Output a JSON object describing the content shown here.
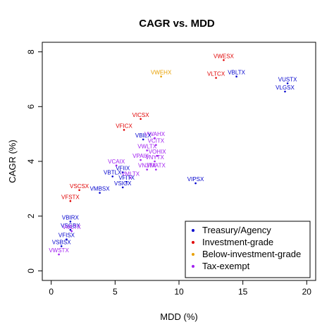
{
  "chart_data": {
    "type": "scatter",
    "title": "CAGR vs. MDD",
    "xlabel": "MDD (%)",
    "ylabel": "CAGR (%)",
    "xlim": [
      -0.7,
      20.7
    ],
    "ylim": [
      -0.35,
      8.35
    ],
    "xticks": [
      0,
      5,
      10,
      15,
      20
    ],
    "yticks": [
      0,
      2,
      4,
      6,
      8
    ],
    "grid": false,
    "legend_position": "bottom-right",
    "legend": [
      {
        "label": "Treasury/Agency",
        "color": "#0000cd"
      },
      {
        "label": "Investment-grade",
        "color": "#e00000"
      },
      {
        "label": "Below-investment-grade",
        "color": "#e8a000"
      },
      {
        "label": "Tax-exempt",
        "color": "#a020f0"
      }
    ],
    "points": [
      {
        "label": "VWESX",
        "x": 13.5,
        "y": 7.7,
        "group": "Investment-grade"
      },
      {
        "label": "VBLTX",
        "x": 14.5,
        "y": 7.1,
        "group": "Treasury/Agency"
      },
      {
        "label": "VLTCX",
        "x": 12.9,
        "y": 7.05,
        "group": "Investment-grade"
      },
      {
        "label": "VWEHX",
        "x": 8.6,
        "y": 7.1,
        "group": "Below-investment-grade"
      },
      {
        "label": "VUSTX",
        "x": 18.5,
        "y": 6.85,
        "group": "Treasury/Agency"
      },
      {
        "label": "VLGSX",
        "x": 18.3,
        "y": 6.55,
        "group": "Treasury/Agency"
      },
      {
        "label": "VICSX",
        "x": 7.0,
        "y": 5.55,
        "group": "Investment-grade"
      },
      {
        "label": "VFICX",
        "x": 5.7,
        "y": 5.15,
        "group": "Investment-grade"
      },
      {
        "label": "VWAHX",
        "x": 8.1,
        "y": 4.85,
        "group": "Tax-exempt"
      },
      {
        "label": "VBILX",
        "x": 7.2,
        "y": 4.8,
        "group": "Treasury/Agency"
      },
      {
        "label": "VCITX",
        "x": 8.2,
        "y": 4.6,
        "group": "Tax-exempt"
      },
      {
        "label": "VWLTX",
        "x": 7.5,
        "y": 4.4,
        "group": "Tax-exempt"
      },
      {
        "label": "VOHIX",
        "x": 8.3,
        "y": 4.2,
        "group": "Tax-exempt"
      },
      {
        "label": "VPAIX",
        "x": 7.0,
        "y": 4.05,
        "group": "Tax-exempt"
      },
      {
        "label": "VNYTX",
        "x": 8.1,
        "y": 4.0,
        "group": "Tax-exempt"
      },
      {
        "label": "VCAIX",
        "x": 5.1,
        "y": 3.85,
        "group": "Tax-exempt"
      },
      {
        "label": "VNJTX",
        "x": 7.5,
        "y": 3.7,
        "group": "Tax-exempt"
      },
      {
        "label": "VMATX",
        "x": 8.2,
        "y": 3.7,
        "group": "Tax-exempt"
      },
      {
        "label": "VFIIX",
        "x": 5.6,
        "y": 3.6,
        "group": "Treasury/Agency"
      },
      {
        "label": "VBTLX",
        "x": 4.8,
        "y": 3.45,
        "group": "Treasury/Agency"
      },
      {
        "label": "VMLTX",
        "x": 6.2,
        "y": 3.4,
        "group": "Tax-exempt"
      },
      {
        "label": "VFITX",
        "x": 5.9,
        "y": 3.25,
        "group": "Treasury/Agency"
      },
      {
        "label": "VIPSX",
        "x": 11.3,
        "y": 3.2,
        "group": "Treasury/Agency"
      },
      {
        "label": "VSIGX",
        "x": 5.6,
        "y": 3.05,
        "group": "Treasury/Agency"
      },
      {
        "label": "VSCSX",
        "x": 2.2,
        "y": 2.95,
        "group": "Investment-grade"
      },
      {
        "label": "VMBSX",
        "x": 3.8,
        "y": 2.85,
        "group": "Treasury/Agency"
      },
      {
        "label": "VFSTX",
        "x": 1.5,
        "y": 2.55,
        "group": "Investment-grade"
      },
      {
        "label": "VBIRX",
        "x": 1.5,
        "y": 1.8,
        "group": "Treasury/Agency"
      },
      {
        "label": "VSGBX",
        "x": 1.5,
        "y": 1.5,
        "group": "Treasury/Agency"
      },
      {
        "label": "VMLTX",
        "x": 1.6,
        "y": 1.45,
        "group": "Tax-exempt"
      },
      {
        "label": "VFISX",
        "x": 1.2,
        "y": 1.15,
        "group": "Treasury/Agency"
      },
      {
        "label": "VSBSX",
        "x": 0.8,
        "y": 0.9,
        "group": "Treasury/Agency"
      },
      {
        "label": "VWSTX",
        "x": 0.6,
        "y": 0.6,
        "group": "Tax-exempt"
      }
    ]
  }
}
